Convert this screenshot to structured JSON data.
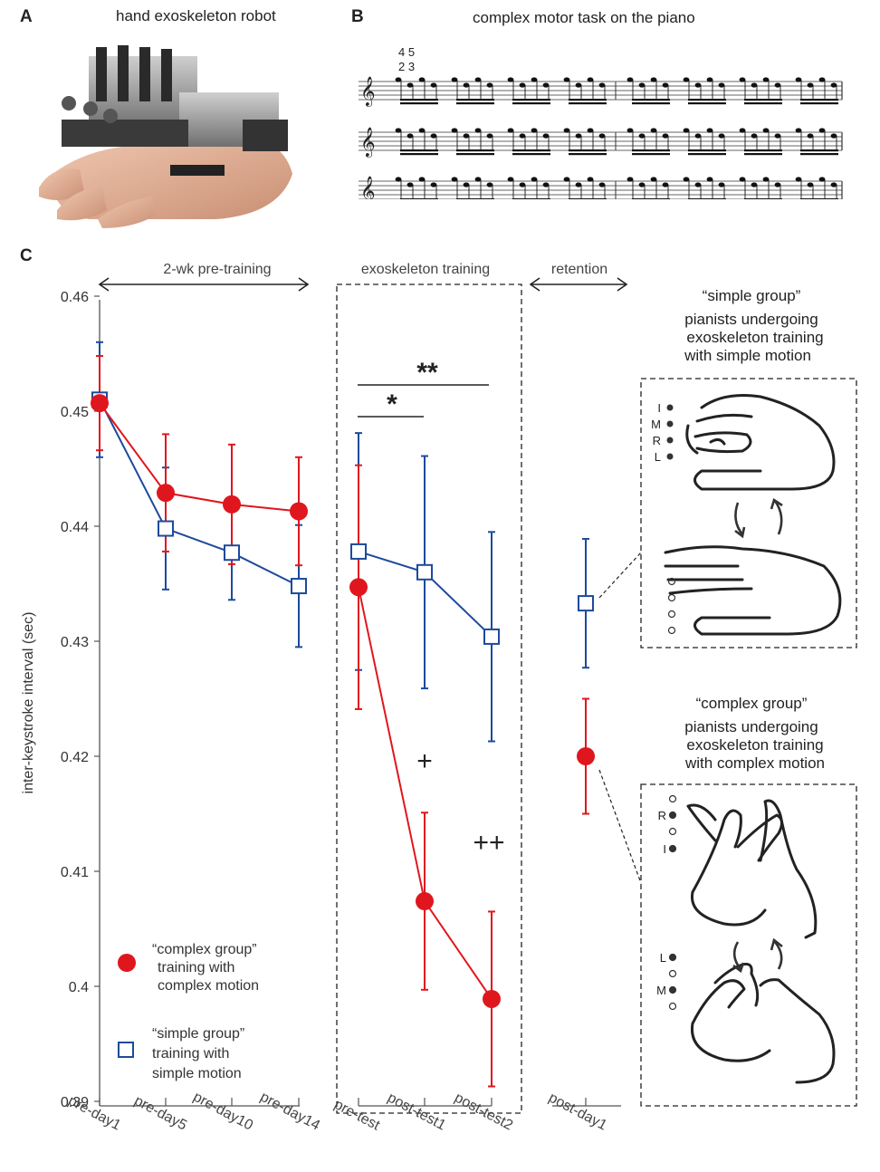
{
  "panel_a": {
    "letter": "A",
    "title": "hand exoskeleton robot"
  },
  "panel_b": {
    "letter": "B",
    "title": "complex motor task on the piano",
    "fingering_top": "4 5",
    "fingering_bottom": "2 3"
  },
  "panel_c": {
    "letter": "C",
    "phases": [
      "2-wk pre-training",
      "exoskeleton training",
      "retention"
    ],
    "significance": [
      "**",
      "*",
      "+",
      "++"
    ],
    "legend": {
      "complex": [
        "“complex group”",
        "training with",
        "complex motion"
      ],
      "simple": [
        "“simple group”",
        "training with",
        "simple motion"
      ]
    },
    "simple_group_text": [
      "“simple group”",
      "pianists undergoing",
      "exoskeleton training",
      "with simple motion"
    ],
    "complex_group_text": [
      "“complex group”",
      "pianists undergoing",
      "exoskeleton training",
      "with complex motion"
    ],
    "simple_finger_labels": [
      "I",
      "M",
      "R",
      "L"
    ],
    "complex_finger_labels_top": [
      "R",
      "I"
    ],
    "complex_finger_labels_bottom": [
      "L",
      "M"
    ]
  },
  "colors": {
    "complex": "#e0161e",
    "simple": "#1d4a9c",
    "axis": "#555555"
  },
  "chart_data": {
    "type": "line",
    "ylabel": "inter-keystroke interval (sec)",
    "ylim": [
      0.39,
      0.46
    ],
    "yticks": [
      0.39,
      0.4,
      0.41,
      0.42,
      0.43,
      0.44,
      0.45,
      0.46
    ],
    "ytick_labels": [
      "0.39",
      "0.4",
      "0.41",
      "0.42",
      "0.43",
      "0.44",
      "0.45",
      "0.46"
    ],
    "categories": [
      "pre-day1",
      "pre-day5",
      "pre-day10",
      "pre-day14",
      "pre-test",
      "post-test1",
      "post-test2",
      "post-day1"
    ],
    "segments": [
      [
        0,
        1,
        2,
        3
      ],
      [
        4,
        5,
        6
      ],
      [
        7
      ]
    ],
    "series": [
      {
        "name": "“complex group” training with complex motion",
        "marker": "filled-circle",
        "values": [
          0.4507,
          0.4429,
          0.4419,
          0.4413,
          0.4347,
          0.4074,
          0.3989,
          0.42
        ],
        "err": [
          0.0041,
          0.0051,
          0.0052,
          0.0047,
          0.0106,
          0.0077,
          0.0076,
          0.005
        ]
      },
      {
        "name": "“simple group” training with simple motion",
        "marker": "open-square",
        "values": [
          0.451,
          0.4398,
          0.4377,
          0.4348,
          0.4378,
          0.436,
          0.4304,
          0.4333
        ],
        "err": [
          0.005,
          0.0053,
          0.0041,
          0.0053,
          0.0103,
          0.0101,
          0.0091,
          0.0056
        ]
      }
    ]
  }
}
